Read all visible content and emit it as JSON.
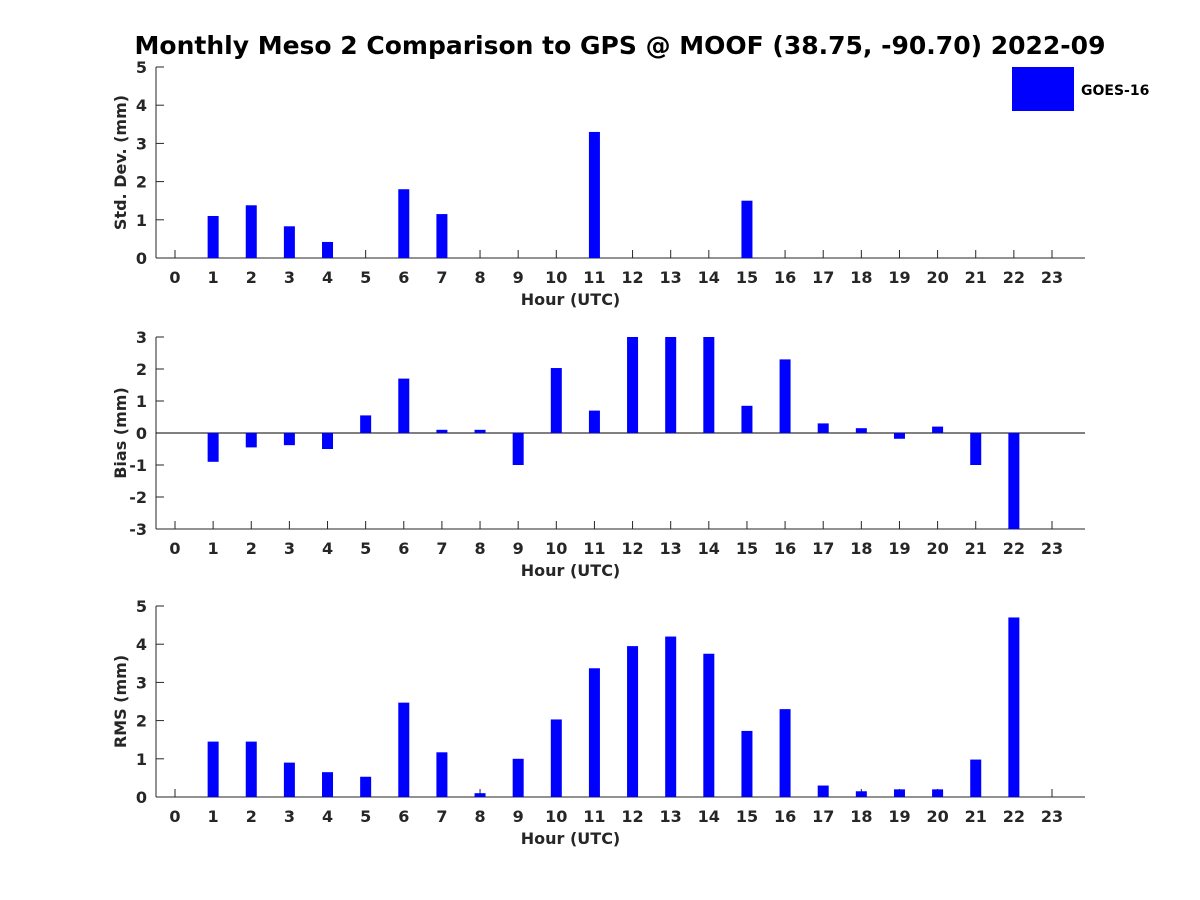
{
  "chart_data": {
    "title": "Monthly Meso 2 Comparison to GPS @ MOOF (38.75, -90.70) 2022-09",
    "legend": {
      "label": "GOES-16",
      "color": "#0000ff",
      "position": "top-right"
    },
    "panels": [
      {
        "type": "bar",
        "ylabel": "Std. Dev. (mm)",
        "xlabel": "Hour (UTC)",
        "ylim": [
          0,
          5
        ],
        "yticks": [
          "0",
          "1",
          "2",
          "3",
          "4",
          "5"
        ],
        "categories": [
          "0",
          "1",
          "2",
          "3",
          "4",
          "5",
          "6",
          "7",
          "8",
          "9",
          "10",
          "11",
          "12",
          "13",
          "14",
          "15",
          "16",
          "17",
          "18",
          "19",
          "20",
          "21",
          "22",
          "23"
        ],
        "values": [
          null,
          1.1,
          1.38,
          0.83,
          0.42,
          null,
          1.8,
          1.15,
          null,
          null,
          null,
          3.3,
          null,
          null,
          null,
          1.5,
          null,
          null,
          null,
          null,
          null,
          null,
          null,
          null
        ]
      },
      {
        "type": "bar",
        "ylabel": "Bias (mm)",
        "xlabel": "Hour (UTC)",
        "ylim": [
          -3,
          3
        ],
        "yticks": [
          "-3",
          "-2",
          "-1",
          "0",
          "1",
          "2",
          "3"
        ],
        "categories": [
          "0",
          "1",
          "2",
          "3",
          "4",
          "5",
          "6",
          "7",
          "8",
          "9",
          "10",
          "11",
          "12",
          "13",
          "14",
          "15",
          "16",
          "17",
          "18",
          "19",
          "20",
          "21",
          "22",
          "23"
        ],
        "values": [
          null,
          -0.9,
          -0.45,
          -0.38,
          -0.5,
          0.55,
          1.7,
          0.1,
          0.1,
          -1.0,
          2.03,
          0.7,
          3.0,
          3.0,
          3.0,
          0.85,
          2.3,
          0.3,
          0.15,
          -0.18,
          0.2,
          -1.0,
          -3.0,
          null
        ]
      },
      {
        "type": "bar",
        "ylabel": "RMS (mm)",
        "xlabel": "Hour (UTC)",
        "ylim": [
          0,
          5
        ],
        "yticks": [
          "0",
          "1",
          "2",
          "3",
          "4",
          "5"
        ],
        "categories": [
          "0",
          "1",
          "2",
          "3",
          "4",
          "5",
          "6",
          "7",
          "8",
          "9",
          "10",
          "11",
          "12",
          "13",
          "14",
          "15",
          "16",
          "17",
          "18",
          "19",
          "20",
          "21",
          "22",
          "23"
        ],
        "values": [
          null,
          1.45,
          1.45,
          0.9,
          0.65,
          0.53,
          2.47,
          1.17,
          0.1,
          1.0,
          2.03,
          3.37,
          3.95,
          4.2,
          3.75,
          1.73,
          2.3,
          0.3,
          0.15,
          0.2,
          0.2,
          0.98,
          4.7,
          null
        ]
      }
    ]
  }
}
